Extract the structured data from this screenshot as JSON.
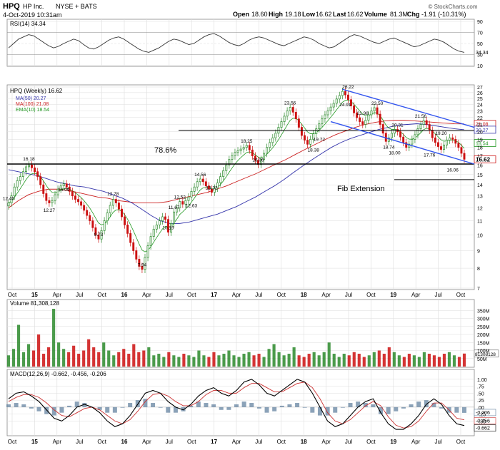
{
  "header": {
    "ticker": "HPQ",
    "company": "HP Inc.",
    "exchange": "NYSE + BATS",
    "timestamp": "4-Oct-2019 10:31am",
    "open_label": "Open",
    "open": "18.60",
    "high_label": "High",
    "high": "19.18",
    "low_label": "Low",
    "low": "16.62",
    "last_label": "Last",
    "last": "16.62",
    "volume_label": "Volume",
    "volume": "81.3M",
    "chg_label": "Chg",
    "chg": "-1.91 (-10.31%)",
    "watermark": "© StockCharts.com"
  },
  "colors": {
    "up": "#2b8a2b",
    "down": "#cc1111",
    "ma50": "#3333aa",
    "ma100": "#cc2222",
    "ema10": "#229922",
    "channel": "#3355ee",
    "grid": "#dddddd"
  },
  "chart_data": [
    {
      "type": "line",
      "panel": "RSI",
      "legend": "RSI(14) 34.34",
      "last_value": "34.34",
      "ylim": [
        10,
        90
      ],
      "yticks": [
        10,
        30,
        50,
        70,
        90
      ],
      "overbought": 70,
      "oversold": 30,
      "series": [
        {
          "name": "RSI(14)",
          "values": [
            42,
            50,
            58,
            62,
            66,
            64,
            58,
            52,
            46,
            42,
            45,
            50,
            54,
            58,
            55,
            48,
            42,
            40,
            44,
            50,
            56,
            60,
            62,
            58,
            52,
            46,
            40,
            36,
            34,
            38,
            42,
            48,
            54,
            58,
            56,
            52,
            48,
            50,
            56,
            62,
            66,
            68,
            64,
            58,
            52,
            48,
            46,
            50,
            56,
            60,
            62,
            60,
            56,
            52,
            48,
            46,
            50,
            54,
            58,
            62,
            60,
            56,
            50,
            46,
            42,
            44,
            50,
            56,
            62,
            66,
            64,
            60,
            56,
            52,
            50,
            54,
            58,
            60,
            56,
            52,
            48,
            44,
            46,
            50,
            54,
            58,
            56,
            52,
            46,
            40,
            36,
            34
          ]
        }
      ]
    },
    {
      "type": "candlestick",
      "panel": "Price",
      "legend": [
        "HPQ (Weekly) 16.62",
        "MA(50) 20.27",
        "MA(100) 21.08",
        "EMA(10) 18.54"
      ],
      "x_ticks": [
        "Oct",
        "15",
        "Apr",
        "Jul",
        "Oct",
        "16",
        "Apr",
        "Jul",
        "Oct",
        "17",
        "Apr",
        "Jul",
        "Oct",
        "18",
        "Apr",
        "Jul",
        "Oct",
        "19",
        "Apr",
        "Jul",
        "Oct"
      ],
      "ylim": [
        7,
        27
      ],
      "log_scale": true,
      "yticks": [
        7,
        8,
        9,
        10,
        11,
        12,
        13,
        14,
        15,
        16,
        17,
        18,
        19,
        20,
        21,
        22,
        23,
        24,
        25,
        26,
        27
      ],
      "close": [
        12.4,
        13.0,
        13.8,
        14.4,
        14.8,
        15.3,
        15.8,
        16.0,
        15.7,
        15.3,
        14.8,
        14.0,
        13.2,
        12.6,
        12.4,
        12.6,
        13.1,
        13.6,
        13.9,
        14.1,
        13.8,
        13.4,
        13.0,
        12.7,
        12.5,
        12.2,
        11.8,
        11.4,
        11.0,
        10.5,
        10.0,
        9.73,
        10.3,
        11.0,
        11.6,
        12.2,
        12.7,
        12.4,
        11.9,
        11.3,
        10.7,
        10.1,
        9.5,
        9.0,
        8.5,
        8.1,
        7.94,
        8.6,
        9.3,
        9.9,
        10.4,
        10.7,
        11.0,
        11.3,
        11.1,
        10.19,
        10.8,
        11.67,
        12.0,
        12.52,
        12.3,
        12.6,
        12.9,
        13.4,
        13.8,
        14.3,
        14.56,
        14.3,
        13.9,
        13.6,
        13.32,
        13.7,
        14.2,
        14.8,
        15.4,
        16.0,
        16.6,
        17.0,
        17.4,
        17.6,
        17.8,
        18.0,
        18.25,
        17.7,
        17.0,
        16.5,
        16.06,
        16.6,
        17.3,
        18.0,
        18.6,
        19.2,
        19.8,
        20.6,
        21.4,
        22.2,
        23.0,
        23.56,
        22.8,
        21.8,
        20.6,
        19.5,
        18.9,
        18.38,
        19.0,
        19.72,
        20.4,
        21.1,
        21.8,
        22.4,
        23.0,
        23.6,
        24.2,
        24.91,
        25.5,
        26.22,
        25.6,
        24.8,
        23.8,
        22.7,
        21.98,
        21.4,
        21.0,
        21.6,
        22.4,
        23.0,
        23.5,
        22.5,
        21.0,
        19.8,
        18.74,
        19.2,
        19.8,
        20.31,
        20.0,
        19.3,
        18.6,
        18.0,
        18.4,
        19.0,
        19.6,
        20.4,
        21.0,
        21.56,
        21.0,
        20.2,
        19.2,
        18.6,
        18.1,
        17.76,
        18.3,
        18.9,
        19.2,
        19.0,
        18.5,
        18.0,
        17.3,
        16.62
      ],
      "ma50": [
        15.5,
        15.3,
        15.1,
        14.9,
        14.6,
        14.3,
        14.1,
        13.9,
        13.8,
        13.6,
        13.4,
        13.1,
        12.8,
        12.4,
        11.9,
        11.4,
        11.0,
        10.8,
        10.8,
        10.9,
        11.1,
        11.3,
        11.5,
        11.8,
        12.1,
        12.5,
        12.9,
        13.4,
        13.9,
        14.5,
        15.2,
        15.9,
        16.6,
        17.3,
        18.0,
        18.6,
        19.1,
        19.5,
        19.9,
        20.3,
        20.6,
        20.9,
        21.0,
        21.1,
        21.0,
        20.8,
        20.6,
        20.4,
        20.27
      ],
      "ma100": [
        12.0,
        12.6,
        13.1,
        13.4,
        13.6,
        13.6,
        13.5,
        13.3,
        13.1,
        12.9,
        12.8,
        12.6,
        12.5,
        12.4,
        12.4,
        12.4,
        12.5,
        12.7,
        12.9,
        13.1,
        13.3,
        13.6,
        13.9,
        14.3,
        14.7,
        15.1,
        15.6,
        16.1,
        16.6,
        17.2,
        17.8,
        18.4,
        19.0,
        19.6,
        20.1,
        20.6,
        21.0,
        21.3,
        21.5,
        21.6,
        21.6,
        21.5,
        21.4,
        21.3,
        21.2,
        21.1,
        21.08
      ],
      "annotations": [
        "16.18",
        "14.09",
        "12.40",
        "12.27",
        "12.78",
        "9.73",
        "7.94",
        "11.67",
        "12.52",
        "10.19",
        "14.56",
        "12.63",
        "13.32",
        "18.25",
        "16.06",
        "23.56",
        "18.38",
        "19.72",
        "26.22",
        "24.91",
        "21.98",
        "23.50",
        "18.74",
        "18.00",
        "20.31",
        "17.76",
        "21.56",
        "19.20",
        "16.06"
      ],
      "fib_label": "78.6%",
      "fib_level": 20.2,
      "support_level": 16.1,
      "fib_extension_label": "Fib Extension",
      "fib_extension_level": 14.5,
      "right_labels": [
        "21.08",
        "20.27",
        "18.54",
        "16.62"
      ]
    },
    {
      "type": "bar",
      "panel": "Volume",
      "legend": "Volume 81,308,128",
      "last_value": "81308128",
      "ylim": [
        0,
        400
      ],
      "ytick_labels": [
        "50M",
        "100M",
        "150M",
        "200M",
        "250M",
        "300M",
        "350M"
      ],
      "values": [
        70,
        110,
        260,
        90,
        140,
        100,
        200,
        80,
        120,
        360,
        150,
        110,
        90,
        130,
        80,
        100,
        170,
        120,
        90,
        150,
        100,
        70,
        90,
        110,
        80,
        140,
        90,
        100,
        120,
        70,
        80,
        60,
        90,
        70,
        60,
        80,
        70,
        60,
        100,
        70,
        60,
        90,
        70,
        80,
        100,
        70,
        60,
        80,
        90,
        70,
        80,
        60,
        110,
        140,
        90,
        70,
        80,
        120,
        70,
        60,
        80,
        90,
        70,
        90,
        150,
        80,
        60,
        80,
        70,
        90,
        80,
        60,
        70,
        90,
        100,
        80,
        120,
        90,
        70,
        60,
        80,
        70,
        60,
        90,
        80,
        70,
        60,
        80,
        90,
        70,
        60,
        81
      ]
    },
    {
      "type": "line",
      "panel": "MACD",
      "legend": "MACD(12,26,9) -0.662, -0.456, -0.206",
      "ylim": [
        -0.9,
        1.15
      ],
      "yticks": [
        -0.5,
        -0.25,
        0,
        0.25,
        0.5,
        0.75,
        1.0
      ],
      "right_labels": [
        "-0.206",
        "-0.456",
        "-0.662"
      ],
      "series": [
        {
          "name": "MACD",
          "values": [
            0.3,
            0.5,
            0.55,
            0.4,
            0.2,
            -0.1,
            -0.4,
            -0.5,
            -0.3,
            0.0,
            0.1,
            0.0,
            -0.2,
            -0.5,
            -0.7,
            -0.6,
            -0.3,
            0.1,
            0.5,
            0.6,
            0.5,
            0.2,
            0.0,
            -0.1,
            0.1,
            0.4,
            0.6,
            0.7,
            0.5,
            0.4,
            0.6,
            0.9,
            1.0,
            0.8,
            0.5,
            0.4,
            0.6,
            0.8,
            1.0,
            0.9,
            0.5,
            0.0,
            -0.5,
            -0.7,
            -0.6,
            -0.3,
            0.0,
            0.2,
            0.3,
            -0.2,
            -0.6,
            -0.8,
            -0.8,
            -0.6,
            -0.3,
            0.1,
            0.3,
            0.1,
            -0.3,
            -0.6,
            -0.662
          ]
        },
        {
          "name": "Signal",
          "values": [
            0.2,
            0.35,
            0.45,
            0.45,
            0.35,
            0.15,
            -0.1,
            -0.3,
            -0.35,
            -0.2,
            -0.05,
            0.0,
            -0.1,
            -0.3,
            -0.5,
            -0.6,
            -0.45,
            -0.15,
            0.2,
            0.45,
            0.5,
            0.4,
            0.2,
            0.05,
            0.05,
            0.2,
            0.45,
            0.6,
            0.6,
            0.5,
            0.5,
            0.7,
            0.85,
            0.85,
            0.7,
            0.55,
            0.55,
            0.7,
            0.85,
            0.9,
            0.7,
            0.3,
            -0.2,
            -0.5,
            -0.6,
            -0.45,
            -0.2,
            0.05,
            0.2,
            0.05,
            -0.35,
            -0.65,
            -0.75,
            -0.7,
            -0.5,
            -0.15,
            0.15,
            0.15,
            -0.1,
            -0.4,
            -0.456
          ]
        }
      ]
    }
  ]
}
